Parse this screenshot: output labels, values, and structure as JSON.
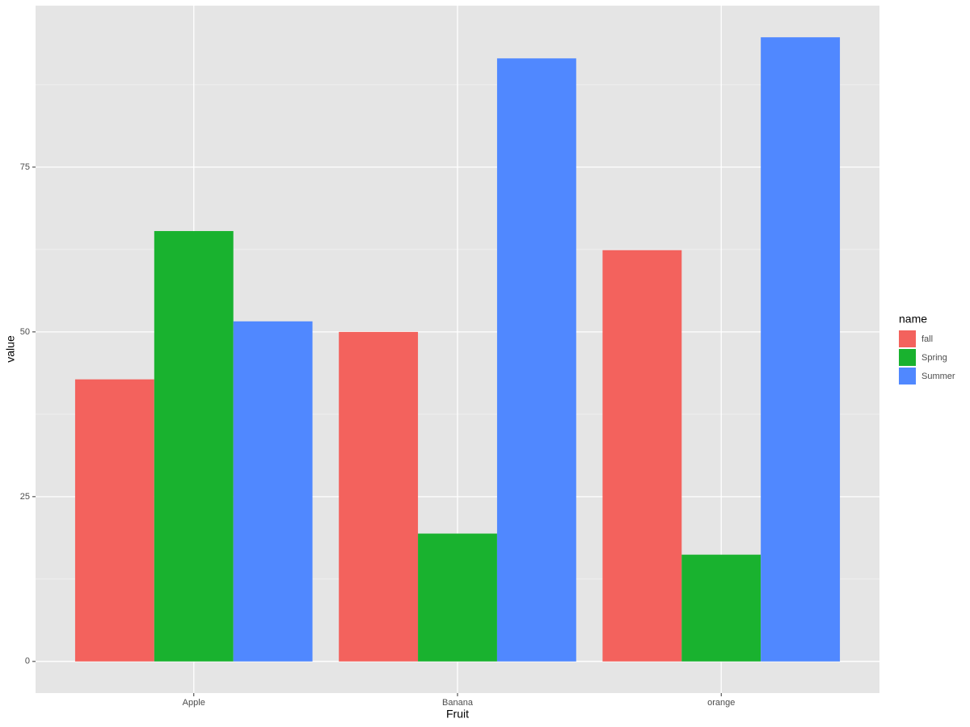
{
  "chart_data": {
    "type": "bar",
    "categories": [
      "Apple",
      "Banana",
      "orange"
    ],
    "series": [
      {
        "name": "fall",
        "color": "#F3625D",
        "values": [
          42.8,
          50.0,
          62.4
        ]
      },
      {
        "name": "Spring",
        "color": "#19B22F",
        "values": [
          65.3,
          19.4,
          16.2
        ]
      },
      {
        "name": "Summer",
        "color": "#5088FF",
        "values": [
          51.6,
          91.5,
          94.7
        ]
      }
    ],
    "x_label": "Fruit",
    "y_label": "value",
    "legend_title": "name",
    "legend_position": "right",
    "ylim": [
      -4.8,
      99.5
    ],
    "yticks": [
      0,
      25,
      50,
      75
    ],
    "minor_yticks": [
      12.5,
      37.5,
      62.5,
      87.5
    ],
    "grid": true
  }
}
